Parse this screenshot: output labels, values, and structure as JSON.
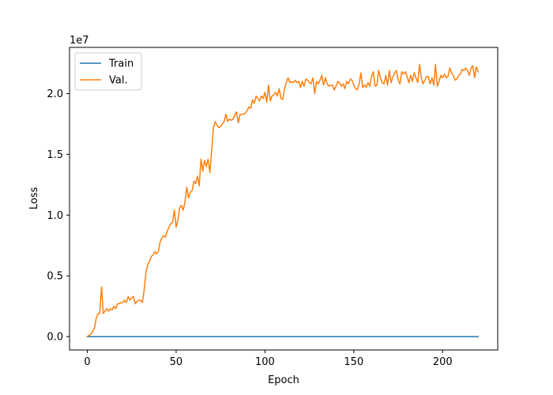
{
  "chart_data": {
    "type": "line",
    "xlabel": "Epoch",
    "ylabel": "Loss",
    "offset_label": "1e7",
    "xlim": [
      -10,
      231
    ],
    "ylim": [
      -1100000,
      23800000
    ],
    "x_ticks": [
      0,
      50,
      100,
      150,
      200
    ],
    "x_tick_labels": [
      "0",
      "50",
      "100",
      "150",
      "200"
    ],
    "y_ticks": [
      0,
      5000000,
      10000000,
      15000000,
      20000000
    ],
    "y_tick_labels": [
      "0.0",
      "0.5",
      "1.0",
      "1.5",
      "2.0"
    ],
    "legend_position": "upper-left",
    "series": [
      {
        "name": "Train",
        "color": "#1f77b4",
        "points": [
          [
            0,
            0
          ],
          [
            220,
            0
          ]
        ]
      },
      {
        "name": "Val.",
        "color": "#ff7f0e",
        "points": [
          [
            0,
            0
          ],
          [
            1,
            100000
          ],
          [
            2,
            200000
          ],
          [
            3,
            400000
          ],
          [
            4,
            700000
          ],
          [
            5,
            1500000
          ],
          [
            6,
            1900000
          ],
          [
            7,
            1900000
          ],
          [
            8,
            4100000
          ],
          [
            9,
            1900000
          ],
          [
            10,
            2100000
          ],
          [
            11,
            2300000
          ],
          [
            12,
            2100000
          ],
          [
            13,
            2300000
          ],
          [
            14,
            2200000
          ],
          [
            15,
            2500000
          ],
          [
            16,
            2300000
          ],
          [
            17,
            2700000
          ],
          [
            18,
            2700000
          ],
          [
            19,
            2800000
          ],
          [
            20,
            2800000
          ],
          [
            21,
            3000000
          ],
          [
            22,
            2800000
          ],
          [
            23,
            3300000
          ],
          [
            24,
            3000000
          ],
          [
            25,
            3200000
          ],
          [
            26,
            3300000
          ],
          [
            27,
            2700000
          ],
          [
            28,
            2900000
          ],
          [
            29,
            3000000
          ],
          [
            30,
            3000000
          ],
          [
            31,
            2800000
          ],
          [
            32,
            3800000
          ],
          [
            33,
            5300000
          ],
          [
            34,
            5900000
          ],
          [
            35,
            6200000
          ],
          [
            36,
            6600000
          ],
          [
            37,
            6700000
          ],
          [
            38,
            7000000
          ],
          [
            39,
            6800000
          ],
          [
            40,
            7000000
          ],
          [
            41,
            7800000
          ],
          [
            42,
            8100000
          ],
          [
            43,
            8300000
          ],
          [
            44,
            8200000
          ],
          [
            45,
            8700000
          ],
          [
            46,
            9000000
          ],
          [
            47,
            9300000
          ],
          [
            48,
            9400000
          ],
          [
            49,
            10400000
          ],
          [
            50,
            9000000
          ],
          [
            51,
            9600000
          ],
          [
            52,
            10600000
          ],
          [
            53,
            10800000
          ],
          [
            54,
            10400000
          ],
          [
            55,
            11100000
          ],
          [
            56,
            12300000
          ],
          [
            57,
            11400000
          ],
          [
            58,
            11900000
          ],
          [
            59,
            12000000
          ],
          [
            60,
            12800000
          ],
          [
            61,
            12600000
          ],
          [
            62,
            13200000
          ],
          [
            63,
            12400000
          ],
          [
            64,
            14600000
          ],
          [
            65,
            13600000
          ],
          [
            66,
            14500000
          ],
          [
            67,
            14000000
          ],
          [
            68,
            14600000
          ],
          [
            69,
            13500000
          ],
          [
            70,
            15300000
          ],
          [
            71,
            17200000
          ],
          [
            72,
            17700000
          ],
          [
            73,
            17400000
          ],
          [
            74,
            17200000
          ],
          [
            75,
            17300000
          ],
          [
            76,
            17500000
          ],
          [
            77,
            17700000
          ],
          [
            78,
            18300000
          ],
          [
            79,
            17700000
          ],
          [
            80,
            17900000
          ],
          [
            81,
            17800000
          ],
          [
            82,
            17900000
          ],
          [
            83,
            18200000
          ],
          [
            84,
            18500000
          ],
          [
            85,
            17600000
          ],
          [
            86,
            18300000
          ],
          [
            87,
            18300000
          ],
          [
            88,
            18300000
          ],
          [
            89,
            18400000
          ],
          [
            90,
            18600000
          ],
          [
            91,
            18900000
          ],
          [
            92,
            18800000
          ],
          [
            93,
            19500000
          ],
          [
            94,
            19200000
          ],
          [
            95,
            19800000
          ],
          [
            96,
            19600000
          ],
          [
            97,
            19400000
          ],
          [
            98,
            19800000
          ],
          [
            99,
            19600000
          ],
          [
            100,
            20100000
          ],
          [
            101,
            19300000
          ],
          [
            102,
            20700000
          ],
          [
            103,
            19400000
          ],
          [
            104,
            19800000
          ],
          [
            105,
            19900000
          ],
          [
            106,
            20100000
          ],
          [
            107,
            19800000
          ],
          [
            108,
            20400000
          ],
          [
            109,
            19600000
          ],
          [
            110,
            19500000
          ],
          [
            111,
            20400000
          ],
          [
            112,
            20900000
          ],
          [
            113,
            21300000
          ],
          [
            114,
            20900000
          ],
          [
            115,
            21000000
          ],
          [
            116,
            20900000
          ],
          [
            117,
            21100000
          ],
          [
            118,
            20900000
          ],
          [
            119,
            21000000
          ],
          [
            120,
            20500000
          ],
          [
            121,
            21000000
          ],
          [
            122,
            20600000
          ],
          [
            123,
            21200000
          ],
          [
            124,
            21100000
          ],
          [
            125,
            20900000
          ],
          [
            126,
            20800000
          ],
          [
            127,
            21300000
          ],
          [
            128,
            20000000
          ],
          [
            129,
            21000000
          ],
          [
            130,
            20800000
          ],
          [
            131,
            21100000
          ],
          [
            132,
            21500000
          ],
          [
            133,
            20700000
          ],
          [
            134,
            21300000
          ],
          [
            135,
            20800000
          ],
          [
            136,
            20600000
          ],
          [
            137,
            20700000
          ],
          [
            138,
            20700000
          ],
          [
            139,
            20300000
          ],
          [
            140,
            20600000
          ],
          [
            141,
            21000000
          ],
          [
            142,
            20900000
          ],
          [
            143,
            20600000
          ],
          [
            144,
            20800000
          ],
          [
            145,
            20400000
          ],
          [
            146,
            21000000
          ],
          [
            147,
            20800000
          ],
          [
            148,
            21200000
          ],
          [
            149,
            21100000
          ],
          [
            150,
            20700000
          ],
          [
            151,
            20400000
          ],
          [
            152,
            20300000
          ],
          [
            153,
            20800000
          ],
          [
            154,
            21700000
          ],
          [
            155,
            20500000
          ],
          [
            156,
            20700000
          ],
          [
            157,
            20500000
          ],
          [
            158,
            20900000
          ],
          [
            159,
            20600000
          ],
          [
            160,
            21400000
          ],
          [
            161,
            21800000
          ],
          [
            162,
            20600000
          ],
          [
            163,
            20700000
          ],
          [
            164,
            21900000
          ],
          [
            165,
            21300000
          ],
          [
            166,
            20900000
          ],
          [
            167,
            20800000
          ],
          [
            168,
            21500000
          ],
          [
            169,
            20700000
          ],
          [
            170,
            21900000
          ],
          [
            171,
            20900000
          ],
          [
            172,
            21400000
          ],
          [
            173,
            21700000
          ],
          [
            174,
            21900000
          ],
          [
            175,
            21100000
          ],
          [
            176,
            20800000
          ],
          [
            177,
            21800000
          ],
          [
            178,
            21600000
          ],
          [
            179,
            21800000
          ],
          [
            180,
            21400000
          ],
          [
            181,
            20900000
          ],
          [
            182,
            21500000
          ],
          [
            183,
            21000000
          ],
          [
            184,
            21700000
          ],
          [
            185,
            21300000
          ],
          [
            186,
            20900000
          ],
          [
            187,
            22400000
          ],
          [
            188,
            21300000
          ],
          [
            189,
            20800000
          ],
          [
            190,
            21100000
          ],
          [
            191,
            21400000
          ],
          [
            192,
            21400000
          ],
          [
            193,
            20800000
          ],
          [
            194,
            21300000
          ],
          [
            195,
            20700000
          ],
          [
            196,
            22400000
          ],
          [
            197,
            20600000
          ],
          [
            198,
            21000000
          ],
          [
            199,
            21500000
          ],
          [
            200,
            21300000
          ],
          [
            201,
            21600000
          ],
          [
            202,
            21300000
          ],
          [
            203,
            21400000
          ],
          [
            204,
            22100000
          ],
          [
            205,
            21700000
          ],
          [
            206,
            21500000
          ],
          [
            207,
            21100000
          ],
          [
            208,
            21200000
          ],
          [
            209,
            21500000
          ],
          [
            210,
            21600000
          ],
          [
            211,
            22000000
          ],
          [
            212,
            21900000
          ],
          [
            213,
            22100000
          ],
          [
            214,
            21900000
          ],
          [
            215,
            21500000
          ],
          [
            216,
            22100000
          ],
          [
            217,
            22300000
          ],
          [
            218,
            21300000
          ],
          [
            219,
            22200000
          ],
          [
            220,
            21800000
          ]
        ]
      }
    ]
  }
}
